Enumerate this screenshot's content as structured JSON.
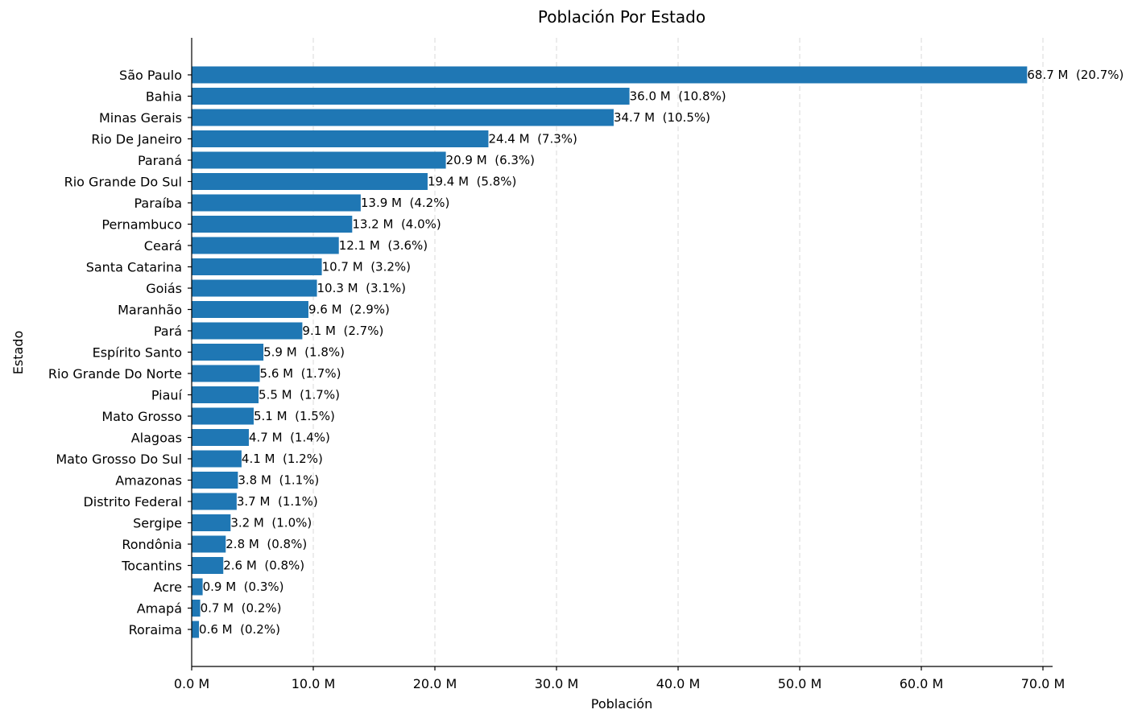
{
  "chart_data": {
    "type": "bar",
    "orientation": "horizontal",
    "title": "Población Por Estado",
    "xlabel": "Población",
    "ylabel": "Estado",
    "xlim": [
      0,
      70.8
    ],
    "xticks": [
      0,
      10,
      20,
      30,
      40,
      50,
      60,
      70
    ],
    "xtick_labels": [
      "0.0 M",
      "10.0 M",
      "20.0 M",
      "30.0 M",
      "40.0 M",
      "50.0 M",
      "60.0 M",
      "70.0 M"
    ],
    "grid": "x-dashed",
    "bar_color": "#1f77b4",
    "categories": [
      "São Paulo",
      "Bahia",
      "Minas Gerais",
      "Rio De Janeiro",
      "Paraná",
      "Rio Grande Do Sul",
      "Paraíba",
      "Pernambuco",
      "Ceará",
      "Santa Catarina",
      "Goiás",
      "Maranhão",
      "Pará",
      "Espírito Santo",
      "Rio Grande Do Norte",
      "Piauí",
      "Mato Grosso",
      "Alagoas",
      "Mato Grosso Do Sul",
      "Amazonas",
      "Distrito Federal",
      "Sergipe",
      "Rondônia",
      "Tocantins",
      "Acre",
      "Amapá",
      "Roraima"
    ],
    "values": [
      68.7,
      36.0,
      34.7,
      24.4,
      20.9,
      19.4,
      13.9,
      13.2,
      12.1,
      10.7,
      10.3,
      9.6,
      9.1,
      5.9,
      5.6,
      5.5,
      5.1,
      4.7,
      4.1,
      3.8,
      3.7,
      3.2,
      2.8,
      2.6,
      0.9,
      0.7,
      0.6
    ],
    "data_labels": [
      "68.7 M  (20.7%)",
      "36.0 M  (10.8%)",
      "34.7 M  (10.5%)",
      "24.4 M  (7.3%)",
      "20.9 M  (6.3%)",
      "19.4 M  (5.8%)",
      "13.9 M  (4.2%)",
      "13.2 M  (4.0%)",
      "12.1 M  (3.6%)",
      "10.7 M  (3.2%)",
      "10.3 M  (3.1%)",
      "9.6 M  (2.9%)",
      "9.1 M  (2.7%)",
      "5.9 M  (1.8%)",
      "5.6 M  (1.7%)",
      "5.5 M  (1.7%)",
      "5.1 M  (1.5%)",
      "4.7 M  (1.4%)",
      "4.1 M  (1.2%)",
      "3.8 M  (1.1%)",
      "3.7 M  (1.1%)",
      "3.2 M  (1.0%)",
      "2.8 M  (0.8%)",
      "2.6 M  (0.8%)",
      "0.9 M  (0.3%)",
      "0.7 M  (0.2%)",
      "0.6 M  (0.2%)"
    ]
  }
}
